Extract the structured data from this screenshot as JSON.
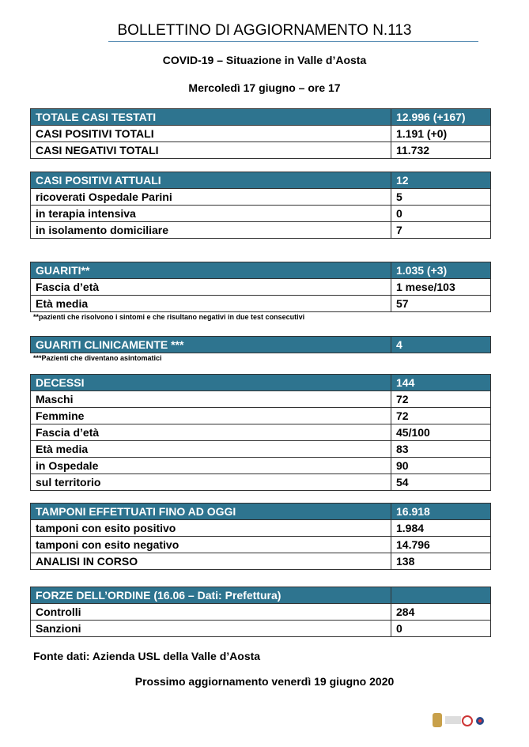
{
  "header": {
    "title": "BOLLETTINO DI AGGIORNAMENTO N.113",
    "subtitle": "COVID-19 – Situazione in Valle d’Aosta",
    "date": "Mercoledì 17 giugno – ore 17"
  },
  "tables": [
    {
      "header": [
        "TOTALE CASI TESTATI",
        "12.996 (+167)"
      ],
      "rows": [
        [
          "CASI POSITIVI TOTALI",
          "1.191 (+0)"
        ],
        [
          "CASI NEGATIVI TOTALI",
          "11.732"
        ]
      ]
    },
    {
      "header": [
        "CASI POSITIVI ATTUALI",
        "12"
      ],
      "rows": [
        [
          "ricoverati Ospedale Parini",
          "5"
        ],
        [
          "in terapia intensiva",
          "0"
        ],
        [
          "in isolamento domiciliare",
          "7"
        ]
      ]
    },
    {
      "header": [
        "GUARITI**",
        "1.035 (+3)"
      ],
      "rows": [
        [
          "Fascia d’età",
          "1 mese/103"
        ],
        [
          "Età media",
          "57"
        ]
      ],
      "footnote": "**pazienti che risolvono i sintomi e che risultano negativi in due test consecutivi"
    },
    {
      "header": [
        "GUARITI CLINICAMENTE ***",
        "4"
      ],
      "rows": [],
      "footnote": "***Pazienti che diventano asintomatici"
    },
    {
      "header": [
        "DECESSI",
        "144"
      ],
      "rows": [
        [
          "Maschi",
          "72"
        ],
        [
          "Femmine",
          "72"
        ],
        [
          "Fascia d’età",
          "45/100"
        ],
        [
          "Età media",
          "83"
        ],
        [
          "in Ospedale",
          "90"
        ],
        [
          "sul territorio",
          "54"
        ]
      ]
    },
    {
      "header": [
        "TAMPONI EFFETTUATI FINO AD OGGI",
        "16.918"
      ],
      "rows": [
        [
          "tamponi con esito positivo",
          "1.984"
        ],
        [
          "tamponi con esito negativo",
          "14.796"
        ],
        [
          "ANALISI IN CORSO",
          "138"
        ]
      ]
    },
    {
      "header": [
        "FORZE DELL’ORDINE (16.06 – Dati: Prefettura)"
      ],
      "rows": [
        [
          "Controlli",
          "284"
        ],
        [
          "Sanzioni",
          "0"
        ]
      ]
    }
  ],
  "footer": {
    "source": "Fonte dati: Azienda USL della Valle d’Aosta",
    "next_update": "Prossimo aggiornamento venerdì 19 giugno 2020"
  }
}
